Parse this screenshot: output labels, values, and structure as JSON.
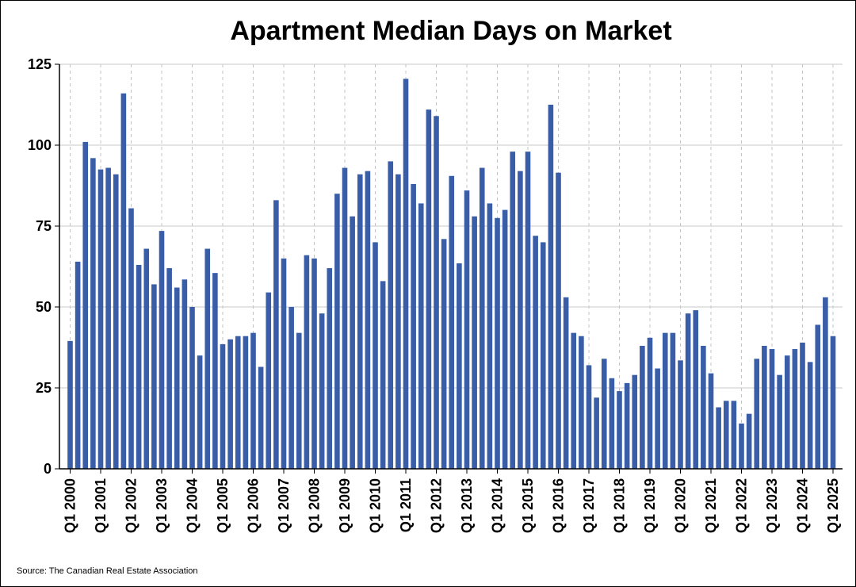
{
  "chart_data": {
    "type": "bar",
    "title": "Apartment Median Days on Market",
    "source": "Source: The Canadian Real Estate Association",
    "xlabel": "",
    "ylabel": "",
    "ylim": [
      0,
      125
    ],
    "yticks": [
      0,
      25,
      50,
      75,
      100,
      125
    ],
    "grid": true,
    "bar_color": "#3A5DA8",
    "x_tick_labels": [
      "Q1 2000",
      "Q1 2001",
      "Q1 2002",
      "Q1 2003",
      "Q1 2004",
      "Q1 2005",
      "Q1 2006",
      "Q1 2007",
      "Q1 2008",
      "Q1 2009",
      "Q1 2010",
      "Q1 2011",
      "Q1 2012",
      "Q1 2013",
      "Q1 2014",
      "Q1 2015",
      "Q1 2016",
      "Q1 2017",
      "Q1 2018",
      "Q1 2019",
      "Q1 2020",
      "Q1 2021",
      "Q1 2022",
      "Q1 2023",
      "Q1 2024",
      "Q1 2025"
    ],
    "categories": [
      "Q1 2000",
      "Q2 2000",
      "Q3 2000",
      "Q4 2000",
      "Q1 2001",
      "Q2 2001",
      "Q3 2001",
      "Q4 2001",
      "Q1 2002",
      "Q2 2002",
      "Q3 2002",
      "Q4 2002",
      "Q1 2003",
      "Q2 2003",
      "Q3 2003",
      "Q4 2003",
      "Q1 2004",
      "Q2 2004",
      "Q3 2004",
      "Q4 2004",
      "Q1 2005",
      "Q2 2005",
      "Q3 2005",
      "Q4 2005",
      "Q1 2006",
      "Q2 2006",
      "Q3 2006",
      "Q4 2006",
      "Q1 2007",
      "Q2 2007",
      "Q3 2007",
      "Q4 2007",
      "Q1 2008",
      "Q2 2008",
      "Q3 2008",
      "Q4 2008",
      "Q1 2009",
      "Q2 2009",
      "Q3 2009",
      "Q4 2009",
      "Q1 2010",
      "Q2 2010",
      "Q3 2010",
      "Q4 2010",
      "Q1 2011",
      "Q2 2011",
      "Q3 2011",
      "Q4 2011",
      "Q1 2012",
      "Q2 2012",
      "Q3 2012",
      "Q4 2012",
      "Q1 2013",
      "Q2 2013",
      "Q3 2013",
      "Q4 2013",
      "Q1 2014",
      "Q2 2014",
      "Q3 2014",
      "Q4 2014",
      "Q1 2015",
      "Q2 2015",
      "Q3 2015",
      "Q4 2015",
      "Q1 2016",
      "Q2 2016",
      "Q3 2016",
      "Q4 2016",
      "Q1 2017",
      "Q2 2017",
      "Q3 2017",
      "Q4 2017",
      "Q1 2018",
      "Q2 2018",
      "Q3 2018",
      "Q4 2018",
      "Q1 2019",
      "Q2 2019",
      "Q3 2019",
      "Q4 2019",
      "Q1 2020",
      "Q2 2020",
      "Q3 2020",
      "Q4 2020",
      "Q1 2021",
      "Q2 2021",
      "Q3 2021",
      "Q4 2021",
      "Q1 2022",
      "Q2 2022",
      "Q3 2022",
      "Q4 2022",
      "Q1 2023",
      "Q2 2023",
      "Q3 2023",
      "Q4 2023",
      "Q1 2024",
      "Q2 2024",
      "Q3 2024",
      "Q4 2024",
      "Q1 2025"
    ],
    "values": [
      39.5,
      64,
      101,
      96,
      92.5,
      93,
      91,
      116,
      80.5,
      63,
      68,
      57,
      73.5,
      62,
      56,
      58.5,
      50,
      35,
      68,
      60.5,
      38.5,
      40,
      41,
      41,
      42,
      31.5,
      54.5,
      83,
      65,
      50,
      42,
      66,
      65,
      48,
      62,
      85,
      93,
      78,
      91,
      92,
      70,
      58,
      95,
      91,
      120.5,
      88,
      82,
      111,
      109,
      71,
      90.5,
      63.5,
      86,
      78,
      93,
      82,
      77.5,
      80,
      98,
      92,
      98,
      72,
      70,
      112.5,
      91.5,
      53,
      42,
      41,
      32,
      22,
      34,
      28,
      24,
      26.5,
      29,
      38,
      40.5,
      31,
      42,
      42,
      33.5,
      48,
      49,
      38,
      29.5,
      19,
      21,
      21,
      14,
      17,
      34,
      38,
      37,
      29,
      35,
      37,
      39,
      33,
      44.5,
      53,
      41
    ]
  }
}
